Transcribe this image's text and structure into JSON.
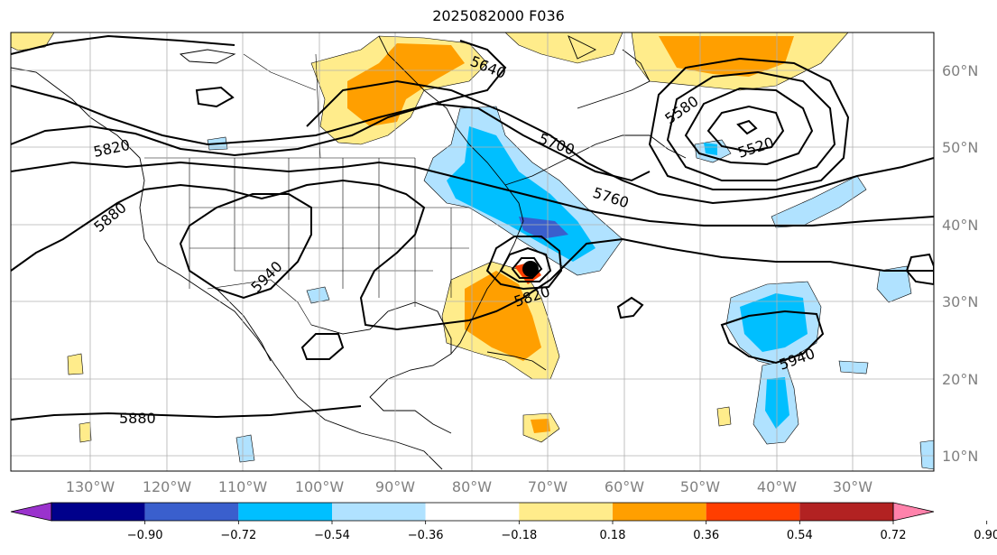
{
  "title": "2025082000 F036",
  "lon_labels": [
    "130°W",
    "120°W",
    "110°W",
    "100°W",
    "90°W",
    "80°W",
    "70°W",
    "60°W",
    "50°W",
    "40°W",
    "30°W"
  ],
  "lat_labels": [
    "60°N",
    "50°N",
    "40°N",
    "30°N",
    "20°N",
    "10°N"
  ],
  "contour_labels": [
    "5640",
    "5580",
    "5520",
    "5700",
    "5760",
    "5820",
    "5820",
    "5880",
    "5940",
    "5940",
    "5880"
  ],
  "colorbar": {
    "ticks": [
      "−0.90",
      "−0.72",
      "−0.54",
      "−0.36",
      "−0.18",
      "0.18",
      "0.36",
      "0.54",
      "0.72",
      "0.90"
    ],
    "colors": [
      "#9a32cd",
      "#00008b",
      "#3a5fcd",
      "#00bfff",
      "#b0e2ff",
      "#ffffff",
      "#ffec8b",
      "#ff9f00",
      "#ff3e00",
      "#b22222",
      "#ff82ab"
    ]
  }
}
